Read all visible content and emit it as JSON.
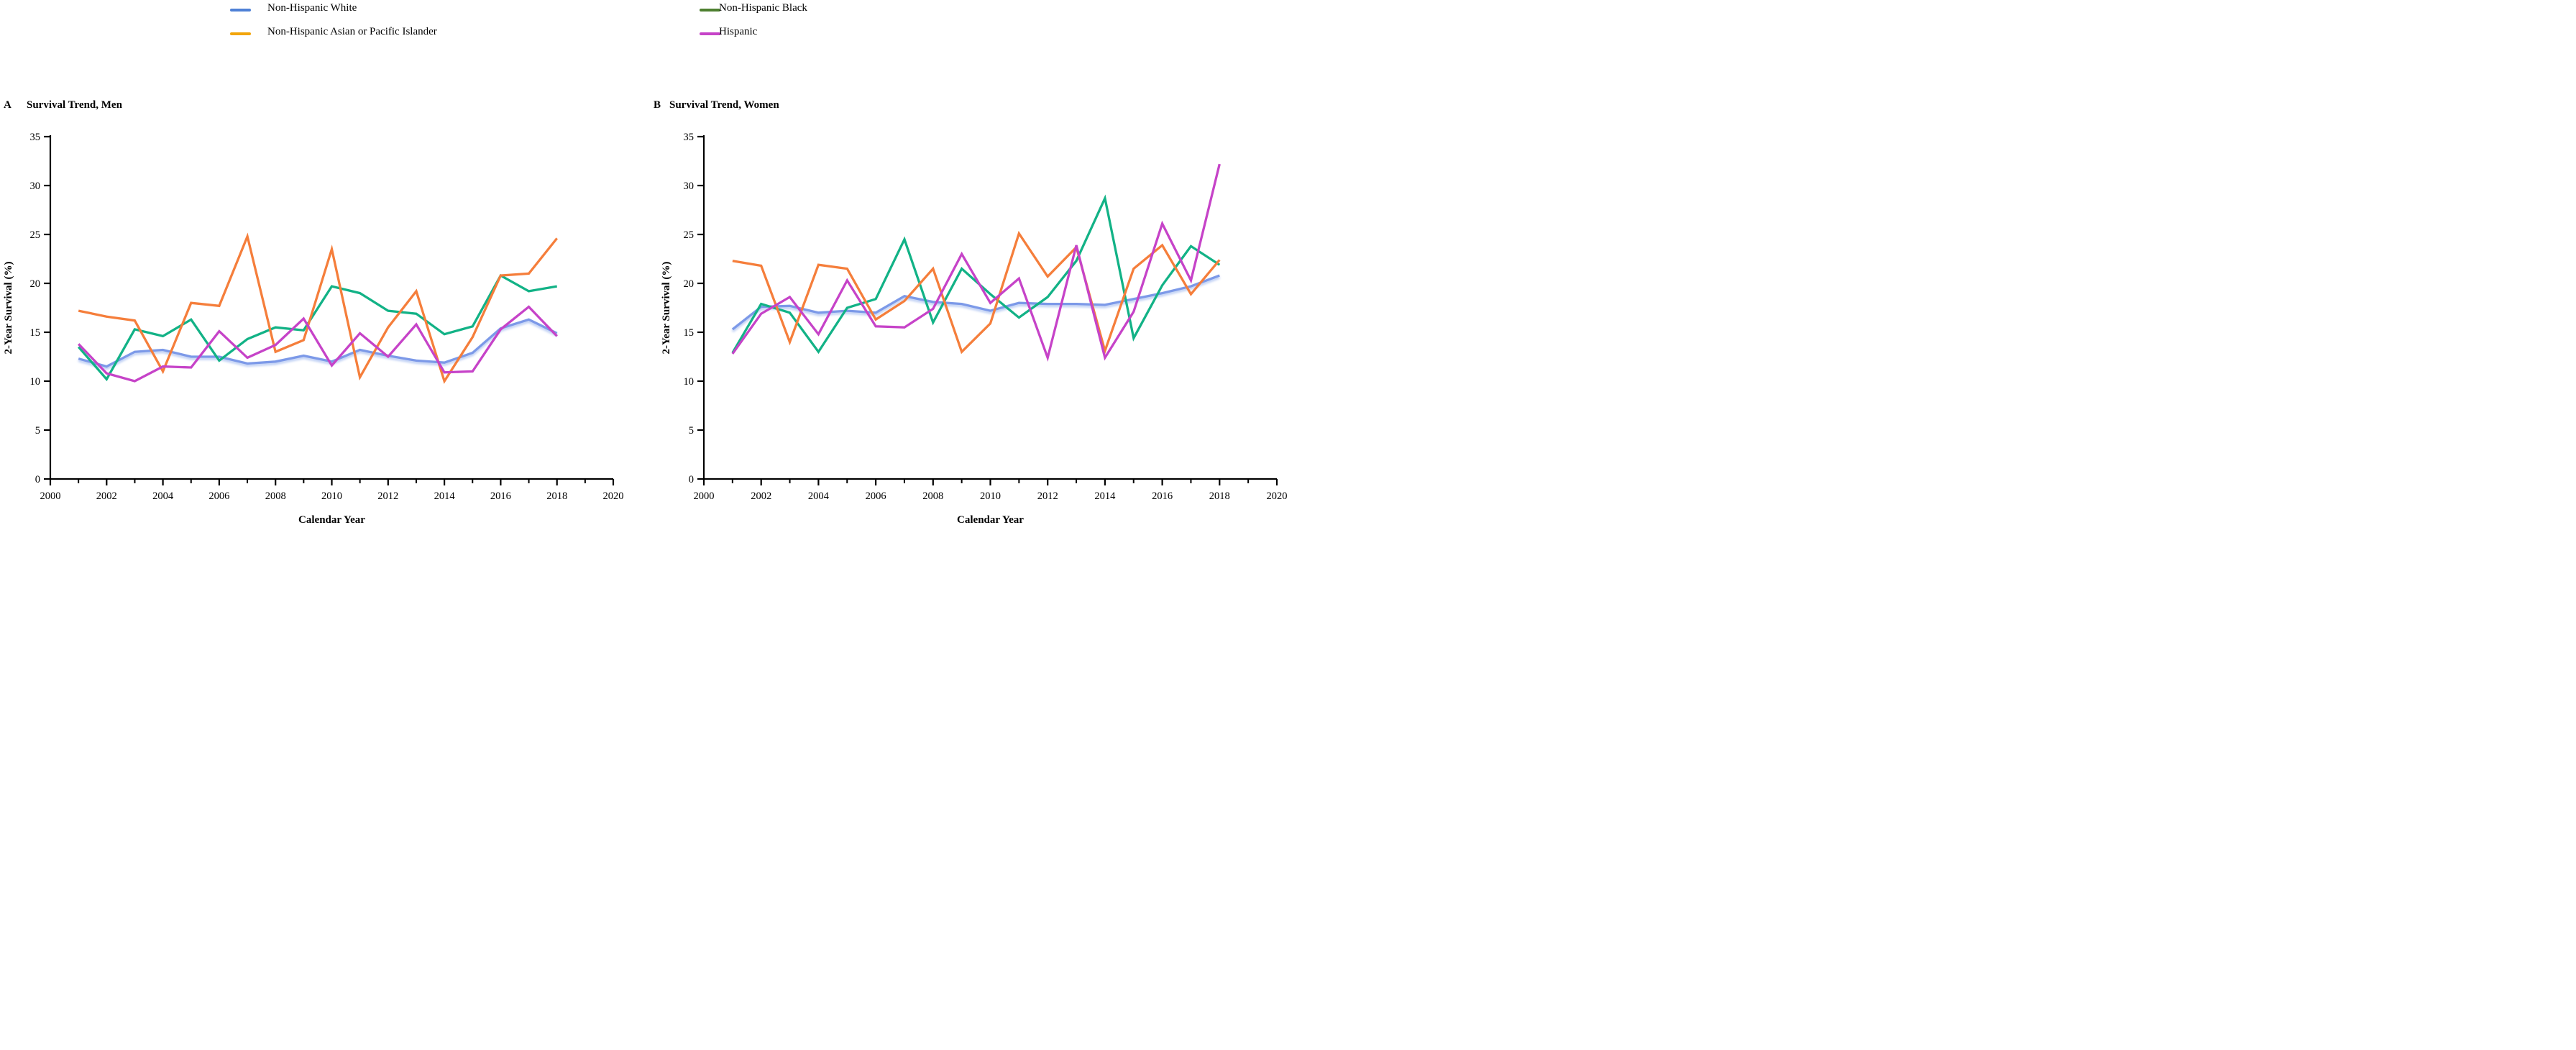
{
  "legend": {
    "items": [
      {
        "id": "non-hispanic-white",
        "label": "Non-Hispanic White",
        "swatch_color": "#4f81d6"
      },
      {
        "id": "non-hispanic-asian-or-pacific-islander",
        "label": "Non-Hispanic Asian or Pacific Islander",
        "swatch_color": "#f2a50a"
      },
      {
        "id": "non-hispanic-black",
        "label": "Non-Hispanic Black",
        "swatch_color": "#4e8030"
      },
      {
        "id": "hispanic",
        "label": "Hispanic",
        "swatch_color": "#c643c8"
      }
    ]
  },
  "panels": [
    {
      "letter": "A",
      "title": "Survival Trend, Men"
    },
    {
      "letter": "B",
      "title": "Survival Trend, Women"
    }
  ],
  "chart_data": [
    {
      "type": "line",
      "title": "Survival Trend, Men",
      "xlabel": "Calendar Year",
      "ylabel": "2-Year Survival (%)",
      "xlim": [
        2000,
        2020
      ],
      "ylim": [
        0,
        35
      ],
      "grid": false,
      "legend_position": "top",
      "x_major_ticks": [
        2000,
        2002,
        2004,
        2006,
        2008,
        2010,
        2012,
        2014,
        2016,
        2018,
        2020
      ],
      "x_minor_ticks": [
        2001,
        2003,
        2005,
        2007,
        2009,
        2011,
        2013,
        2015,
        2017,
        2019
      ],
      "y_ticks": [
        0,
        5,
        10,
        15,
        20,
        25,
        30,
        35
      ],
      "x": [
        2001,
        2002,
        2003,
        2004,
        2005,
        2006,
        2007,
        2008,
        2009,
        2010,
        2011,
        2012,
        2013,
        2014,
        2015,
        2016,
        2017,
        2018
      ],
      "series": [
        {
          "name": "Non-Hispanic White",
          "color": "#7b99e8",
          "halo": true,
          "values": [
            12.3,
            11.5,
            13.0,
            13.2,
            12.5,
            12.5,
            11.8,
            12.0,
            12.6,
            12.0,
            13.2,
            12.6,
            12.1,
            11.9,
            12.9,
            15.4,
            16.3,
            14.9
          ]
        },
        {
          "name": "Non-Hispanic Black",
          "color": "#12b286",
          "halo": false,
          "values": [
            13.5,
            10.2,
            15.3,
            14.6,
            16.3,
            12.1,
            14.3,
            15.5,
            15.2,
            19.7,
            19.0,
            17.2,
            16.9,
            14.8,
            15.6,
            20.8,
            19.2,
            19.7
          ]
        },
        {
          "name": "Non-Hispanic Asian or Pacific Islander",
          "color": "#f57e3b",
          "halo": false,
          "values": [
            17.2,
            16.6,
            16.2,
            11.0,
            18.0,
            17.7,
            24.8,
            13.0,
            14.2,
            23.5,
            10.4,
            15.5,
            19.2,
            10.0,
            14.5,
            20.8,
            21.0,
            24.6
          ]
        },
        {
          "name": "Hispanic",
          "color": "#c643c8",
          "halo": false,
          "values": [
            13.8,
            10.8,
            10.0,
            11.5,
            11.4,
            15.1,
            12.4,
            13.7,
            16.4,
            11.6,
            14.9,
            12.5,
            15.8,
            10.9,
            11.0,
            15.3,
            17.6,
            14.6
          ]
        }
      ]
    },
    {
      "type": "line",
      "title": "Survival Trend, Women",
      "xlabel": "Calendar Year",
      "ylabel": "2-Year Survival (%)",
      "xlim": [
        2000,
        2020
      ],
      "ylim": [
        0,
        35
      ],
      "grid": false,
      "legend_position": "top",
      "x_major_ticks": [
        2000,
        2002,
        2004,
        2006,
        2008,
        2010,
        2012,
        2014,
        2016,
        2018,
        2020
      ],
      "x_minor_ticks": [
        2001,
        2003,
        2005,
        2007,
        2009,
        2011,
        2013,
        2015,
        2017,
        2019
      ],
      "y_ticks": [
        0,
        5,
        10,
        15,
        20,
        25,
        30,
        35
      ],
      "x": [
        2001,
        2002,
        2003,
        2004,
        2005,
        2006,
        2007,
        2008,
        2009,
        2010,
        2011,
        2012,
        2013,
        2014,
        2015,
        2016,
        2017,
        2018
      ],
      "series": [
        {
          "name": "Non-Hispanic White",
          "color": "#7b99e8",
          "halo": true,
          "values": [
            15.3,
            17.6,
            17.7,
            17.0,
            17.2,
            17.0,
            18.7,
            18.1,
            17.9,
            17.2,
            18.0,
            17.9,
            17.9,
            17.8,
            18.4,
            19.0,
            19.7,
            20.8
          ]
        },
        {
          "name": "Non-Hispanic Black",
          "color": "#12b286",
          "halo": false,
          "values": [
            12.9,
            17.9,
            17.0,
            13.0,
            17.5,
            18.4,
            24.5,
            16.0,
            21.5,
            18.9,
            16.5,
            18.6,
            22.3,
            28.7,
            14.4,
            19.8,
            23.8,
            21.9
          ]
        },
        {
          "name": "Non-Hispanic Asian or Pacific Islander",
          "color": "#f57e3b",
          "halo": false,
          "values": [
            22.3,
            21.8,
            14.0,
            21.9,
            21.5,
            16.3,
            18.2,
            21.5,
            13.0,
            15.9,
            25.1,
            20.7,
            23.7,
            13.1,
            21.5,
            23.9,
            18.9,
            22.4
          ]
        },
        {
          "name": "Hispanic",
          "color": "#c643c8",
          "halo": false,
          "values": [
            12.8,
            16.9,
            18.6,
            14.8,
            20.3,
            15.6,
            15.5,
            17.4,
            23.0,
            18.0,
            20.5,
            12.4,
            23.9,
            12.4,
            17.1,
            26.1,
            20.3,
            32.2
          ]
        }
      ]
    }
  ]
}
